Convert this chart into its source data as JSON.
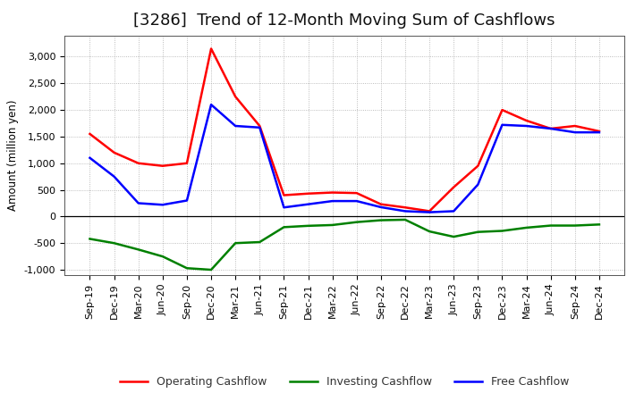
{
  "title": "[3286]  Trend of 12-Month Moving Sum of Cashflows",
  "ylabel": "Amount (million yen)",
  "x_labels": [
    "Sep-19",
    "Dec-19",
    "Mar-20",
    "Jun-20",
    "Sep-20",
    "Dec-20",
    "Mar-21",
    "Jun-21",
    "Sep-21",
    "Dec-21",
    "Mar-22",
    "Jun-22",
    "Sep-22",
    "Dec-22",
    "Mar-23",
    "Jun-23",
    "Sep-23",
    "Dec-23",
    "Mar-24",
    "Jun-24",
    "Sep-24",
    "Dec-24"
  ],
  "operating": [
    1550,
    1200,
    1000,
    950,
    1000,
    3150,
    2250,
    1700,
    400,
    430,
    450,
    440,
    230,
    170,
    100,
    550,
    950,
    2000,
    1800,
    1650,
    1700,
    1600
  ],
  "investing": [
    -420,
    -500,
    -620,
    -750,
    -970,
    -1000,
    -500,
    -480,
    -200,
    -175,
    -160,
    -105,
    -70,
    -60,
    -280,
    -380,
    -290,
    -270,
    -210,
    -170,
    -170,
    -150
  ],
  "free": [
    1100,
    750,
    250,
    220,
    300,
    2100,
    1700,
    1670,
    170,
    230,
    290,
    290,
    175,
    100,
    80,
    100,
    600,
    1720,
    1700,
    1650,
    1580,
    1580
  ],
  "operating_color": "#ff0000",
  "investing_color": "#008000",
  "free_color": "#0000ff",
  "ylim": [
    -1100,
    3400
  ],
  "yticks": [
    -1000,
    -500,
    0,
    500,
    1000,
    1500,
    2000,
    2500,
    3000
  ],
  "bg_color": "#ffffff",
  "grid_color": "#aaaaaa",
  "linewidth": 1.8,
  "title_fontsize": 13,
  "label_fontsize": 8.5,
  "tick_fontsize": 8,
  "legend_fontsize": 9
}
